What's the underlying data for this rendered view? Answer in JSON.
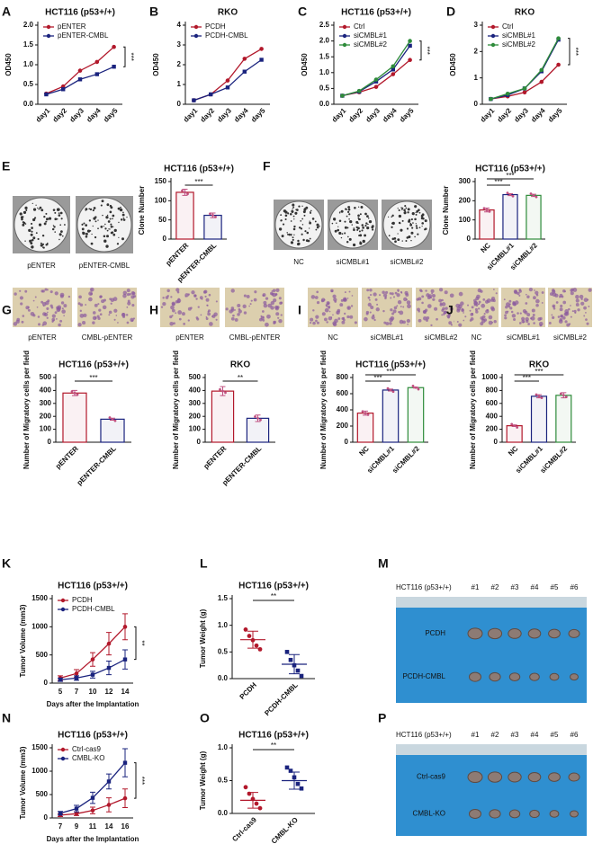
{
  "chart_data": [
    {
      "panel": "A",
      "type": "line",
      "title": "HCT116 (p53+/+)",
      "ylabel": "OD450",
      "categories": [
        "day1",
        "day2",
        "day3",
        "day4",
        "day5"
      ],
      "ylim": [
        0,
        2
      ],
      "yticks": [
        {
          "value": 0,
          "label": "0.0"
        },
        0.5,
        {
          "value": 1,
          "label": "1.0"
        },
        1.5,
        {
          "value": 2,
          "label": "2.0"
        }
      ],
      "series": [
        {
          "name": "pENTER",
          "color": "#b2182b",
          "values": [
            0.27,
            0.45,
            0.85,
            1.07,
            1.45
          ]
        },
        {
          "name": "pENTER-CMBL",
          "color": "#1a237e",
          "values": [
            0.25,
            0.38,
            0.63,
            0.76,
            0.95
          ]
        }
      ],
      "significance": "***"
    },
    {
      "panel": "B",
      "type": "line",
      "title": "RKO",
      "ylabel": "OD450",
      "categories": [
        "day1",
        "day2",
        "day3",
        "day4",
        "day5"
      ],
      "ylim": [
        0,
        4
      ],
      "yticks": [
        0,
        1,
        2,
        3,
        4
      ],
      "series": [
        {
          "name": "PCDH",
          "color": "#b2182b",
          "values": [
            0.2,
            0.5,
            1.2,
            2.3,
            2.8
          ]
        },
        {
          "name": "PCDH-CMBL",
          "color": "#1a237e",
          "values": [
            0.2,
            0.5,
            0.85,
            1.65,
            2.25
          ]
        }
      ]
    },
    {
      "panel": "C",
      "type": "line",
      "title": "HCT116 (p53+/+)",
      "ylabel": "OD450",
      "categories": [
        "day1",
        "day2",
        "day3",
        "day4",
        "day5"
      ],
      "ylim": [
        0,
        2.5
      ],
      "yticks": [
        {
          "value": 0,
          "label": "0.0"
        },
        0.5,
        {
          "value": 1,
          "label": "1.0"
        },
        1.5,
        {
          "value": 2,
          "label": "2.0"
        },
        2.5
      ],
      "series": [
        {
          "name": "Ctrl",
          "color": "#b2182b",
          "values": [
            0.27,
            0.38,
            0.55,
            0.95,
            1.4
          ]
        },
        {
          "name": "siCMBL#1",
          "color": "#1a237e",
          "values": [
            0.27,
            0.4,
            0.72,
            1.1,
            1.85
          ]
        },
        {
          "name": "siCMBL#2",
          "color": "#2e8b3a",
          "values": [
            0.27,
            0.42,
            0.78,
            1.2,
            2.0
          ]
        }
      ],
      "significance": "***"
    },
    {
      "panel": "D",
      "type": "line",
      "title": "RKO",
      "ylabel": "OD450",
      "categories": [
        "day1",
        "day2",
        "day3",
        "day4",
        "day5"
      ],
      "ylim": [
        0,
        3
      ],
      "yticks": [
        0,
        1,
        2,
        3
      ],
      "series": [
        {
          "name": "Ctrl",
          "color": "#b2182b",
          "values": [
            0.2,
            0.3,
            0.45,
            0.85,
            1.5
          ]
        },
        {
          "name": "siCMBL#1",
          "color": "#1a237e",
          "values": [
            0.2,
            0.35,
            0.6,
            1.25,
            2.45
          ]
        },
        {
          "name": "siCMBL#2",
          "color": "#2e8b3a",
          "values": [
            0.2,
            0.4,
            0.6,
            1.3,
            2.5
          ]
        }
      ],
      "significance": "***"
    },
    {
      "panel": "E",
      "type": "image",
      "labels": [
        "pENTER",
        "pENTER-CMBL"
      ]
    },
    {
      "type": "bar",
      "title": "HCT116 (p53+/+)",
      "ylabel": "Clone Number",
      "categories": [
        "pENTER",
        "pENTER-CMBL"
      ],
      "values": [
        122,
        62
      ],
      "errors": [
        8,
        6
      ],
      "colors": [
        "#b2182b",
        "#1a237e"
      ],
      "ylim": [
        0,
        150
      ],
      "yticks": [
        0,
        50,
        100,
        150
      ],
      "significance": [
        "***"
      ]
    },
    {
      "panel": "F",
      "type": "image",
      "labels": [
        "NC",
        "siCMBL#1",
        "siCMBL#2"
      ]
    },
    {
      "type": "bar",
      "title": "HCT116 (p53+/+)",
      "ylabel": "Clone Number",
      "categories": [
        "NC",
        "siCMBL#1",
        "siCMBL#2"
      ],
      "values": [
        152,
        232,
        228
      ],
      "errors": [
        10,
        5,
        6
      ],
      "colors": [
        "#b2182b",
        "#1a237e",
        "#2e8b3a"
      ],
      "ylim": [
        0,
        300
      ],
      "yticks": [
        0,
        100,
        200,
        300
      ],
      "significance": [
        "***",
        "***"
      ]
    },
    {
      "panel": "G",
      "type": "image",
      "labels": [
        "pENTER",
        "CMBL-pENTER"
      ]
    },
    {
      "type": "bar",
      "title": "HCT116 (p53+/+)",
      "ylabel": "Number of Migratory cells per field",
      "categories": [
        "pENTER",
        "pENTER-CMBL"
      ],
      "values": [
        380,
        178
      ],
      "errors": [
        20,
        8
      ],
      "colors": [
        "#b2182b",
        "#1a237e"
      ],
      "ylim": [
        0,
        500
      ],
      "yticks": [
        0,
        100,
        200,
        300,
        400,
        500
      ],
      "significance": [
        "***"
      ]
    },
    {
      "panel": "H",
      "type": "image",
      "labels": [
        "pENTER",
        "CMBL-pENTER"
      ]
    },
    {
      "type": "bar",
      "title": "RKO",
      "ylabel": "Number of Migratory cells per field",
      "categories": [
        "pENTER",
        "pENTER-CMBL"
      ],
      "values": [
        395,
        185
      ],
      "errors": [
        35,
        25
      ],
      "colors": [
        "#b2182b",
        "#1a237e"
      ],
      "ylim": [
        0,
        500
      ],
      "yticks": [
        0,
        100,
        200,
        300,
        400,
        500
      ],
      "significance": [
        "**"
      ]
    },
    {
      "panel": "I",
      "type": "image",
      "labels": [
        "NC",
        "siCMBL#1",
        "siCMBL#2"
      ]
    },
    {
      "type": "bar",
      "title": "HCT116 (p53+/+)",
      "ylabel": "Number of Migratory cells per field",
      "categories": [
        "NC",
        "siCMBL#1",
        "siCMBL#2"
      ],
      "values": [
        360,
        645,
        675
      ],
      "errors": [
        25,
        12,
        6
      ],
      "colors": [
        "#b2182b",
        "#1a237e",
        "#2e8b3a"
      ],
      "ylim": [
        0,
        800
      ],
      "yticks": [
        0,
        200,
        400,
        600,
        800
      ],
      "significance": [
        "***",
        "***"
      ]
    },
    {
      "panel": "J",
      "type": "image",
      "labels": [
        "NC",
        "siCMBL#1",
        "siCMBL#2"
      ]
    },
    {
      "type": "bar",
      "title": "RKO",
      "ylabel": "Number of Migratory cells per field",
      "categories": [
        "NC",
        "siCMBL#1",
        "siCMBL#2"
      ],
      "values": [
        255,
        710,
        725
      ],
      "errors": [
        12,
        25,
        40
      ],
      "colors": [
        "#b2182b",
        "#1a237e",
        "#2e8b3a"
      ],
      "ylim": [
        0,
        1000
      ],
      "yticks": [
        0,
        200,
        400,
        600,
        800,
        1000
      ],
      "significance": [
        "***",
        "***"
      ]
    },
    {
      "panel": "K",
      "type": "line",
      "title": "HCT116 (p53+/+)",
      "ylabel": "Tumor Volume (mm3)",
      "xlabel": "Days after the Implantation",
      "categories": [
        "5",
        "7",
        "10",
        "12",
        "14"
      ],
      "ylim": [
        0,
        1500
      ],
      "yticks": [
        0,
        500,
        1000,
        1500
      ],
      "series": [
        {
          "name": "PCDH",
          "color": "#b2182b",
          "values": [
            90,
            170,
            420,
            700,
            1000
          ],
          "errors": [
            40,
            70,
            120,
            200,
            230
          ]
        },
        {
          "name": "PCDH-CMBL",
          "color": "#1a237e",
          "values": [
            60,
            90,
            150,
            270,
            420
          ],
          "errors": [
            30,
            40,
            60,
            120,
            170
          ]
        }
      ],
      "significance": "**"
    },
    {
      "panel": "L",
      "type": "dot",
      "title": "HCT116 (p53+/+)",
      "ylabel": "Tumor Weight (g)",
      "ylim": [
        0,
        1.5
      ],
      "yticks": [
        {
          "value": 0,
          "label": "0.0"
        },
        0.5,
        {
          "value": 1,
          "label": "1.0"
        },
        1.5
      ],
      "groups": [
        {
          "name": "PCDH",
          "color": "#b2182b",
          "points": [
            0.92,
            0.8,
            0.72,
            0.62,
            0.55
          ],
          "mean": 0.73,
          "sd": 0.16
        },
        {
          "name": "PCDH-CMBL",
          "color": "#1a237e",
          "points": [
            0.5,
            0.35,
            0.25,
            0.15,
            0.05
          ],
          "mean": 0.27,
          "sd": 0.18
        }
      ],
      "significance": "**"
    },
    {
      "panel": "M",
      "type": "photo",
      "header": "HCT116 (p53+/+)",
      "columns": [
        "#1",
        "#2",
        "#3",
        "#4",
        "#5",
        "#6"
      ],
      "rows": [
        "PCDH",
        "PCDH-CMBL"
      ]
    },
    {
      "panel": "N",
      "type": "line",
      "title": "HCT116 (p53+/+)",
      "ylabel": "Tumor Volume (mm3)",
      "xlabel": "Days after the Implantation",
      "categories": [
        "7",
        "9",
        "11",
        "14",
        "16"
      ],
      "ylim": [
        0,
        1500
      ],
      "yticks": [
        0,
        500,
        1000,
        1500
      ],
      "series": [
        {
          "name": "Ctrl-cas9",
          "color": "#b2182b",
          "values": [
            60,
            90,
            160,
            280,
            420
          ],
          "errors": [
            30,
            40,
            70,
            150,
            200
          ]
        },
        {
          "name": "CMBL-KO",
          "color": "#1a237e",
          "values": [
            100,
            200,
            430,
            780,
            1180
          ],
          "errors": [
            40,
            70,
            120,
            160,
            300
          ]
        }
      ],
      "significance": "***"
    },
    {
      "panel": "O",
      "type": "dot",
      "title": "HCT116 (p53+/+)",
      "ylabel": "Tumor Weight (g)",
      "ylim": [
        0,
        1
      ],
      "yticks": [
        {
          "value": 0,
          "label": "0.0"
        },
        0.5,
        {
          "value": 1,
          "label": "1.0"
        }
      ],
      "groups": [
        {
          "name": "Ctrl-cas9",
          "color": "#b2182b",
          "points": [
            0.4,
            0.3,
            0.22,
            0.15,
            0.08
          ],
          "mean": 0.2,
          "sd": 0.12
        },
        {
          "name": "CMBL-KO",
          "color": "#1a237e",
          "points": [
            0.7,
            0.65,
            0.55,
            0.45,
            0.38
          ],
          "mean": 0.5,
          "sd": 0.13
        }
      ],
      "significance": "**"
    },
    {
      "panel": "P",
      "type": "photo",
      "header": "HCT116 (p53+/+)",
      "columns": [
        "#1",
        "#2",
        "#3",
        "#4",
        "#5",
        "#6"
      ],
      "rows": [
        "Ctrl-cas9",
        "CMBL-KO"
      ]
    }
  ]
}
